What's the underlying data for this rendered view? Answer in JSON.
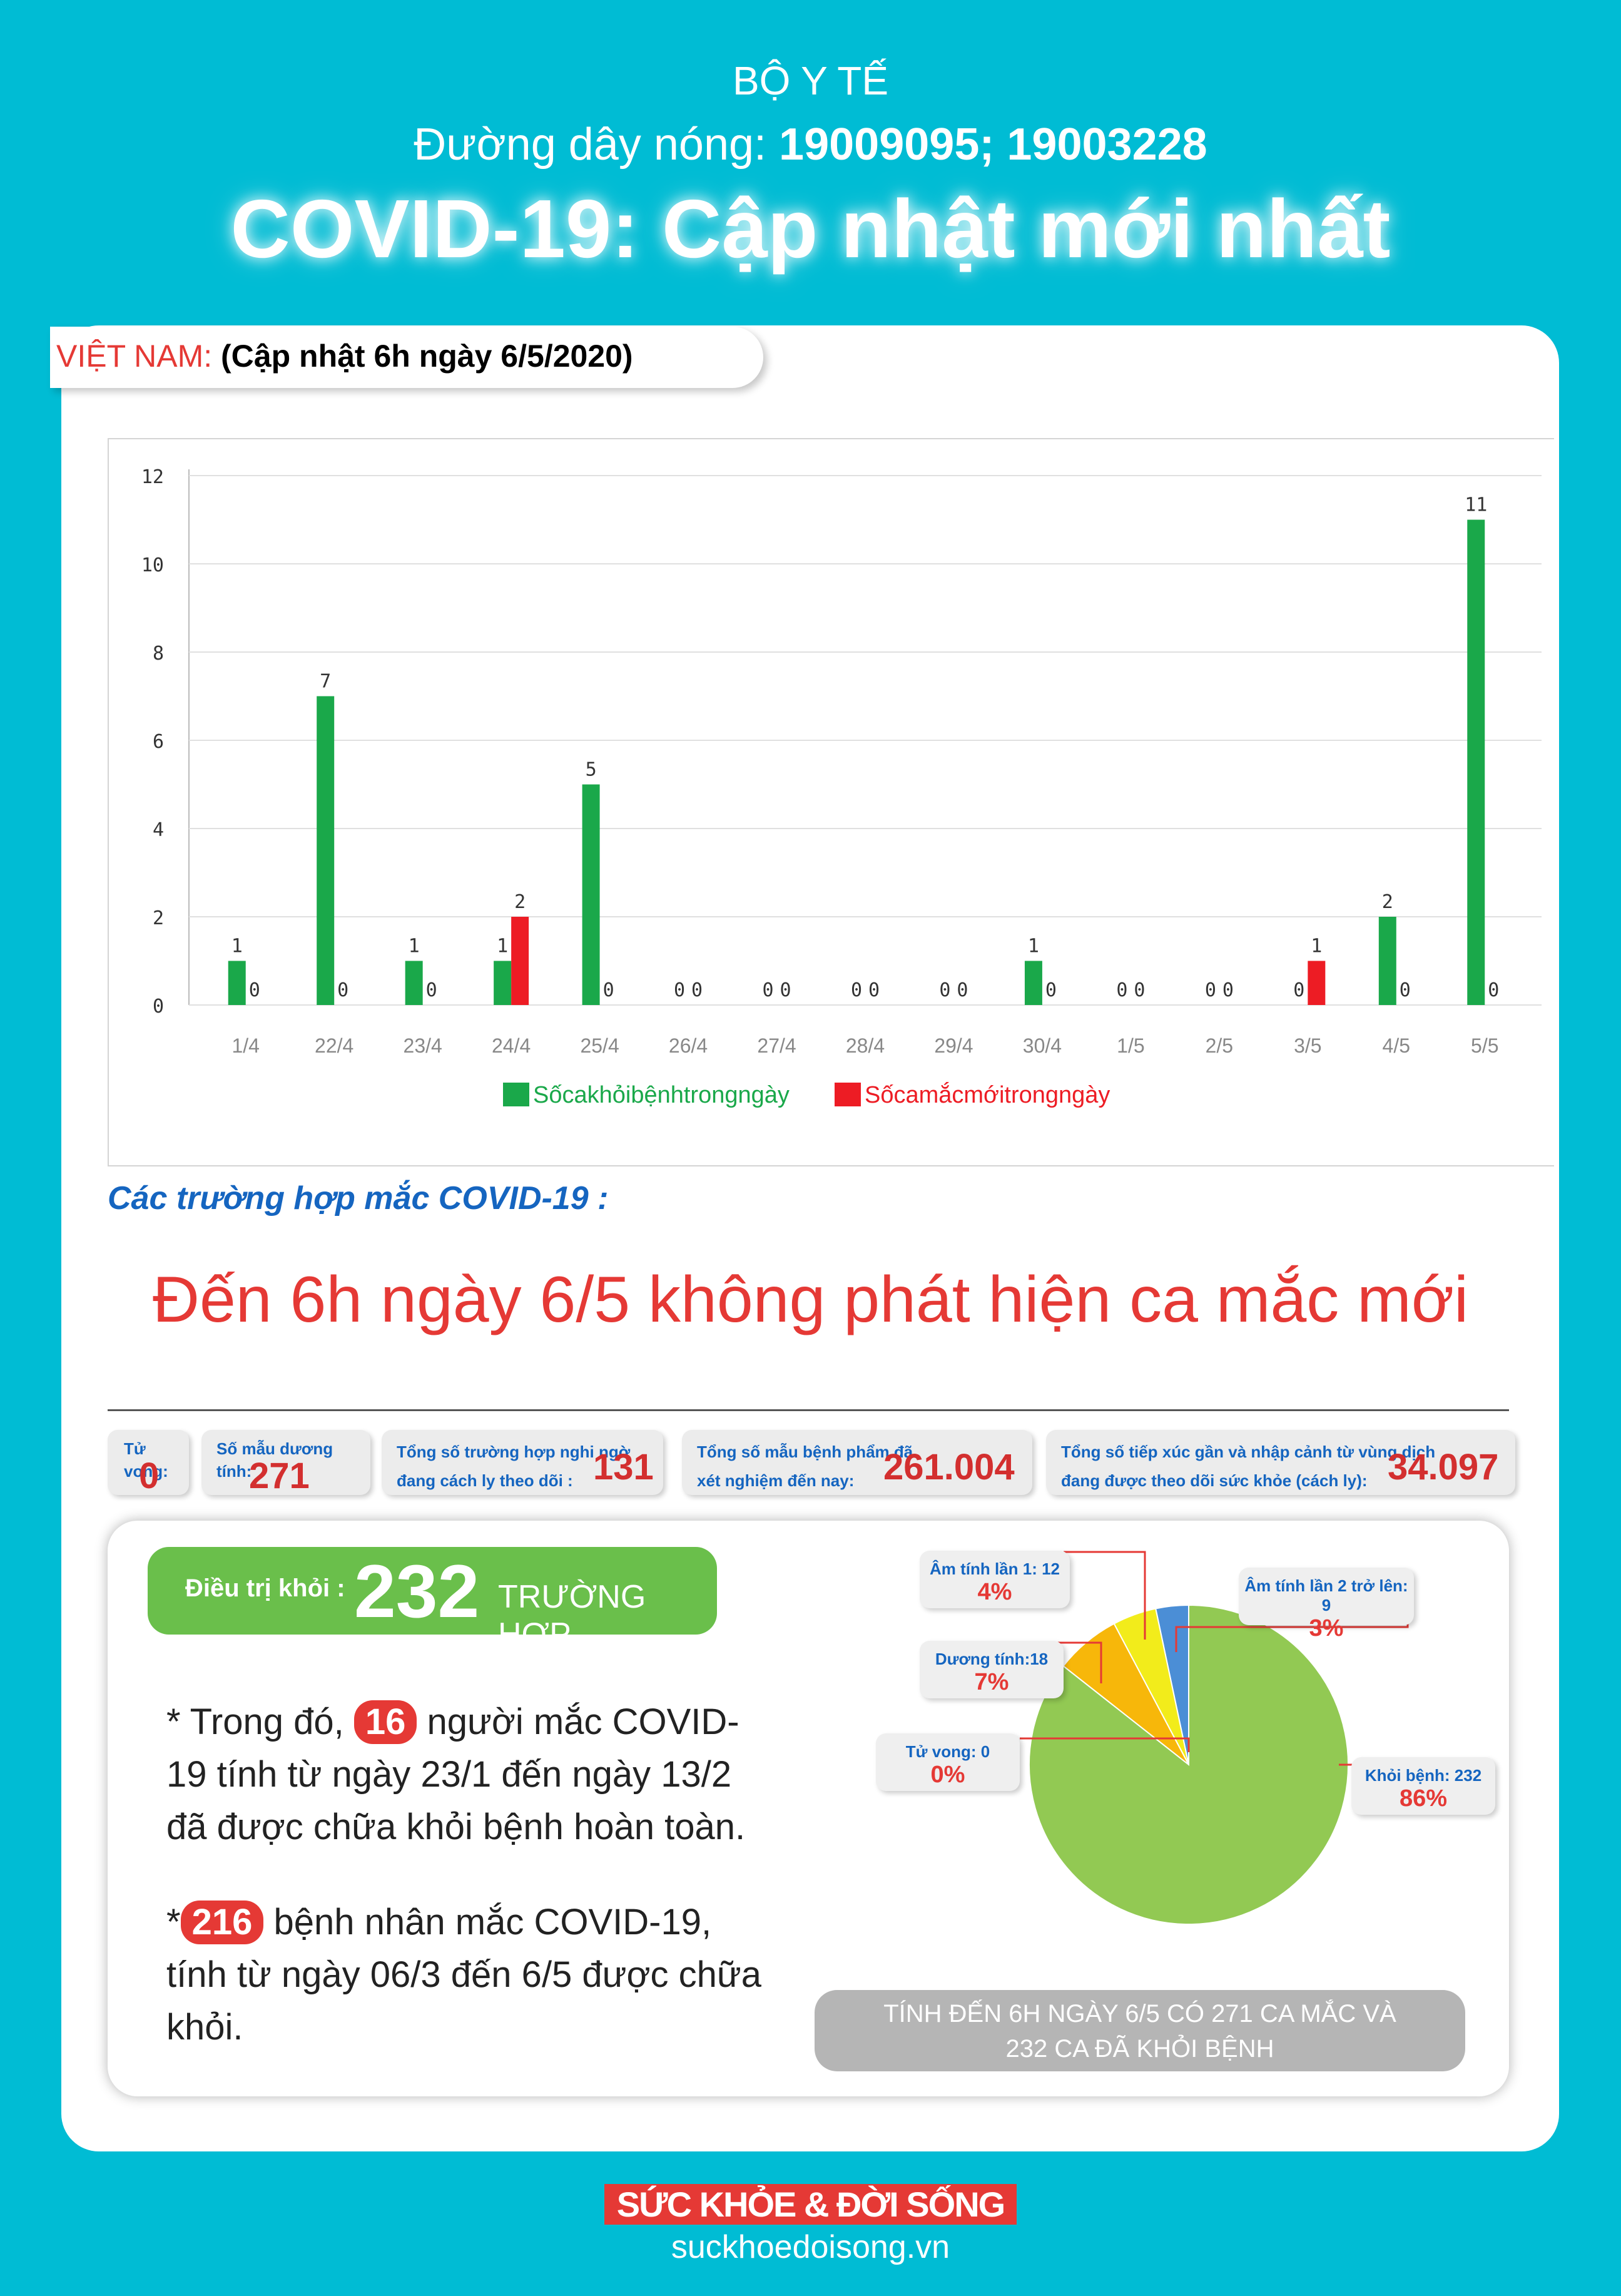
{
  "header": {
    "org": "BỘ Y TẾ",
    "hotline_label": "Đường dây nóng:",
    "hotline_numbers": "19009095; 19003228",
    "headline": "COVID-19: Cập nhật mới nhất"
  },
  "vn_tag": {
    "country": "VIỆT NAM:",
    "update": "(Cập nhật 6h ngày 6/5/2020)"
  },
  "chart_data": {
    "type": "bar",
    "categories": [
      "1/4",
      "22/4",
      "23/4",
      "24/4",
      "25/4",
      "26/4",
      "27/4",
      "28/4",
      "29/4",
      "30/4",
      "1/5",
      "2/5",
      "3/5",
      "4/5",
      "5/5"
    ],
    "series": [
      {
        "name": "Sốcakhỏibệnhtrongngày",
        "color": "#1aa84a",
        "values": [
          1,
          7,
          1,
          1,
          5,
          0,
          0,
          0,
          0,
          1,
          0,
          0,
          0,
          2,
          11
        ]
      },
      {
        "name": "Sốcamắcmớitrongngày",
        "color": "#ed1c24",
        "values": [
          0,
          0,
          0,
          2,
          0,
          0,
          0,
          0,
          0,
          0,
          0,
          0,
          1,
          0,
          0
        ]
      }
    ],
    "ylim": [
      0,
      12
    ],
    "yticks": [
      0,
      2,
      4,
      6,
      8,
      10,
      12
    ],
    "grid": true,
    "legend": "bottom"
  },
  "cases": {
    "section_title": "Các trường hợp mắc COVID-19 :",
    "announcement": "Đến 6h ngày 6/5 không phát hiện ca mắc mới"
  },
  "stats": {
    "deaths": {
      "label": "Tử vong:",
      "value": "0"
    },
    "positive": {
      "label": "Số mẫu dương tính:",
      "value": "271"
    },
    "suspected": {
      "label1": "Tổng số trường hợp nghi ngờ",
      "label2": "đang cách ly theo dõi :",
      "value": "131"
    },
    "tested": {
      "label1": "Tổng số mẫu bệnh phẩm đã",
      "label2": "xét nghiệm đến nay:",
      "value": "261.004"
    },
    "contacts": {
      "label1": "Tổng số tiếp xúc gần và nhập cảnh từ vùng dịch",
      "label2": "đang được theo dõi sức khỏe (cách ly):",
      "value": "34.097"
    }
  },
  "treatment": {
    "label": "Điều trị khỏi :",
    "number": "232",
    "unit": "TRƯỜNG HỢP",
    "note1_prefix": "* Trong đó,",
    "note1_num": "16",
    "note1_text": "người mắc COVID-19 tính từ ngày 23/1 đến ngày 13/2 đã được chữa khỏi bệnh hoàn toàn.",
    "note2_prefix": "*",
    "note2_num": "216",
    "note2_text": "bệnh nhân  mắc COVID-19, tính từ ngày 06/3 đến 6/5 được chữa khỏi."
  },
  "pie": {
    "slices": [
      {
        "label": "Khỏi bệnh: 232",
        "pct": "86%",
        "value": 232,
        "color": "#92c953"
      },
      {
        "label": "Dương tính:18",
        "pct": "7%",
        "value": 18,
        "color": "#f7b70a"
      },
      {
        "label": "Âm tính lần 1: 12",
        "pct": "4%",
        "value": 12,
        "color": "#f2ec1b"
      },
      {
        "label": "Âm tính lần 2 trở lên: 9",
        "pct": "3%",
        "value": 9,
        "color": "#4b8ed6"
      },
      {
        "label": "Tử vong: 0",
        "pct": "0%",
        "value": 0,
        "color": "#e53935"
      }
    ]
  },
  "summary": {
    "line1": "TÍNH ĐẾN 6H NGÀY 6/5 CÓ 271 CA MẮC VÀ",
    "line2": "232 CA ĐÃ KHỎI BỆNH"
  },
  "footer": {
    "logo": "SỨC KHỎE & ĐỜI SỐNG",
    "url": "suckhoedoisong.vn"
  }
}
